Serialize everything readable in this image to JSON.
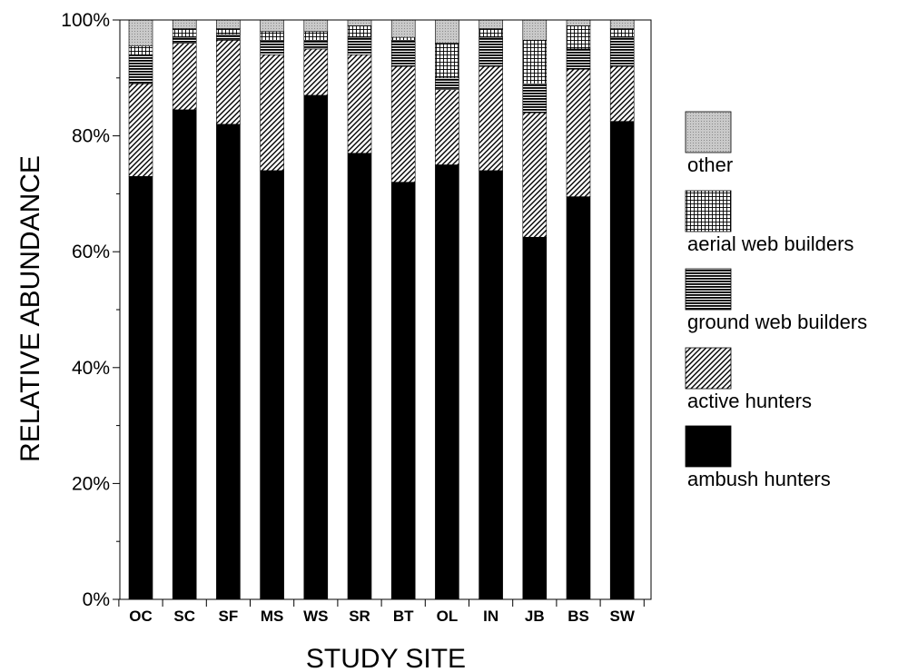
{
  "chart_data": {
    "type": "bar",
    "stacked": true,
    "xlabel": "STUDY SITE",
    "ylabel": "RELATIVE ABUNDANCE",
    "categories": [
      "OC",
      "SC",
      "SF",
      "MS",
      "WS",
      "SR",
      "BT",
      "OL",
      "IN",
      "JB",
      "BS",
      "SW"
    ],
    "ylim": [
      0,
      100
    ],
    "yticks": [
      0,
      20,
      40,
      60,
      80,
      100
    ],
    "ytick_labels": [
      "0%",
      "20%",
      "40%",
      "60%",
      "80%",
      "100%"
    ],
    "grid": false,
    "legend": "right",
    "series": [
      {
        "name": "ambush hunters",
        "values": [
          73,
          84.5,
          82,
          74,
          87,
          77,
          72,
          75,
          74,
          62.5,
          69.5,
          82.5
        ]
      },
      {
        "name": "active hunters",
        "values": [
          16,
          11.5,
          14.5,
          20,
          8,
          17,
          20,
          13,
          18,
          21.5,
          22,
          9.5
        ]
      },
      {
        "name": "ground web builders",
        "values": [
          5,
          1,
          1,
          2.5,
          1.5,
          3,
          4.5,
          2,
          5,
          5,
          3.5,
          5
        ]
      },
      {
        "name": "aerial web builders",
        "values": [
          1.5,
          1.5,
          1,
          1.5,
          1.5,
          2,
          0.5,
          6,
          1.5,
          7.5,
          4,
          1.5
        ]
      },
      {
        "name": "other",
        "values": [
          4.5,
          1.5,
          1.5,
          2,
          2,
          1,
          3,
          4,
          1.5,
          3.5,
          1,
          1.5
        ]
      }
    ]
  }
}
